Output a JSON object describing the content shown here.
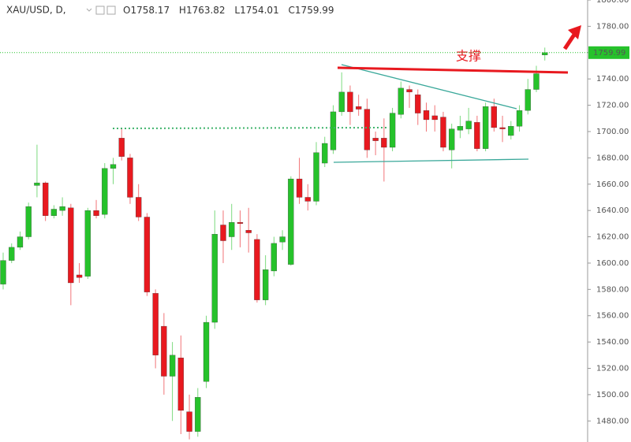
{
  "header": {
    "symbol": "XAU/USD, D,",
    "open_prefix": "O",
    "high_prefix": "H",
    "low_prefix": "L",
    "close_prefix": "C"
  },
  "annotations": {
    "support": "支撑"
  },
  "chart_data": {
    "type": "candlestick",
    "categories": [
      null,
      null,
      null,
      null,
      null,
      null,
      null,
      null,
      null,
      null,
      null,
      null,
      null,
      null,
      null,
      null,
      null,
      null,
      null,
      null,
      null,
      null,
      null,
      null,
      null,
      null,
      null,
      null,
      null,
      null,
      null,
      null,
      null,
      null,
      null,
      null,
      null,
      null,
      null,
      null,
      null,
      null,
      null,
      null,
      null,
      null,
      null,
      null,
      null,
      null,
      null,
      null,
      null,
      null,
      null,
      null,
      null,
      null,
      null,
      null,
      null,
      null,
      null,
      null,
      null
    ],
    "open": [
      1584,
      1602,
      1612,
      1620,
      1659,
      1661,
      1636,
      1640,
      1642,
      1591,
      1590,
      1640,
      1637,
      1672,
      1695,
      1680,
      1650,
      1635,
      1577,
      1552,
      1514,
      1528,
      1487,
      1472,
      1510,
      1555,
      1629,
      1620,
      1631,
      1625,
      1618,
      1572,
      1594,
      1616,
      1599,
      1664,
      1650,
      1647,
      1676,
      1686,
      1715,
      1730,
      1719,
      1717,
      1695,
      1695,
      1688,
      1713,
      1732,
      1728,
      1716,
      1712,
      1711,
      1686,
      1701,
      1702,
      1707,
      1687,
      1719,
      1703,
      1697,
      1704,
      1716,
      1732,
      1758.17
    ],
    "high": [
      1608,
      1615,
      1624,
      1646,
      1690,
      1662,
      1644,
      1650,
      1645,
      1600,
      1642,
      1648,
      1676,
      1680,
      1702,
      1683,
      1660,
      1638,
      1580,
      1562,
      1540,
      1545,
      1500,
      1505,
      1560,
      1640,
      1640,
      1645,
      1640,
      1642,
      1622,
      1606,
      1620,
      1625,
      1666,
      1680,
      1660,
      1692,
      1696,
      1720,
      1745,
      1735,
      1728,
      1725,
      1700,
      1710,
      1718,
      1738,
      1735,
      1732,
      1722,
      1720,
      1715,
      1706,
      1712,
      1718,
      1712,
      1722,
      1725,
      1712,
      1708,
      1720,
      1740,
      1750,
      1763.82
    ],
    "low": [
      1580,
      1600,
      1610,
      1618,
      1650,
      1632,
      1634,
      1636,
      1568,
      1585,
      1588,
      1634,
      1634,
      1660,
      1678,
      1645,
      1632,
      1575,
      1520,
      1500,
      1480,
      1470,
      1466,
      1468,
      1505,
      1550,
      1600,
      1610,
      1612,
      1608,
      1570,
      1568,
      1590,
      1610,
      1598,
      1645,
      1640,
      1644,
      1673,
      1683,
      1712,
      1705,
      1712,
      1680,
      1682,
      1662,
      1685,
      1710,
      1718,
      1705,
      1700,
      1700,
      1685,
      1672,
      1695,
      1698,
      1685,
      1685,
      1700,
      1692,
      1694,
      1700,
      1713,
      1730,
      1754.01
    ],
    "close": [
      1602,
      1612,
      1620,
      1643,
      1661,
      1636,
      1641,
      1643,
      1585,
      1589,
      1640,
      1636,
      1672,
      1675,
      1681,
      1650,
      1635,
      1578,
      1530,
      1514,
      1530,
      1488,
      1472,
      1498,
      1555,
      1622,
      1617,
      1631,
      1630,
      1623,
      1572,
      1595,
      1615,
      1620,
      1664,
      1650,
      1647,
      1684,
      1691,
      1715,
      1730,
      1715,
      1717,
      1686,
      1693,
      1688,
      1714,
      1733,
      1730,
      1714,
      1709,
      1709,
      1688,
      1702,
      1704,
      1708,
      1687,
      1719,
      1703,
      1702,
      1704,
      1716,
      1732,
      1744,
      1759.99
    ],
    "up_color": "#26c22b",
    "down_color": "#e8191f",
    "last_price_color": "#26c22b",
    "ylim": [
      1464,
      1800
    ],
    "yticks": [
      {
        "value": 1480,
        "label": "1480.00"
      },
      {
        "value": 1500,
        "label": "1500.00"
      },
      {
        "value": 1520,
        "label": "1520.00"
      },
      {
        "value": 1540,
        "label": "1540.00"
      },
      {
        "value": 1560,
        "label": "1560.00"
      },
      {
        "value": 1580,
        "label": "1580.00"
      },
      {
        "value": 1600,
        "label": "1600.00"
      },
      {
        "value": 1620,
        "label": "1620.00"
      },
      {
        "value": 1640,
        "label": "1640.00"
      },
      {
        "value": 1660,
        "label": "1660.00"
      },
      {
        "value": 1680,
        "label": "1680.00"
      },
      {
        "value": 1700,
        "label": "1700.00"
      },
      {
        "value": 1720,
        "label": "1720.00"
      },
      {
        "value": 1740,
        "label": "1740.00"
      },
      {
        "value": 1760,
        "label": "1760.00"
      },
      {
        "value": 1780,
        "label": "1780.00"
      },
      {
        "value": 1800,
        "label": "1800.00"
      }
    ],
    "grid": false
  }
}
